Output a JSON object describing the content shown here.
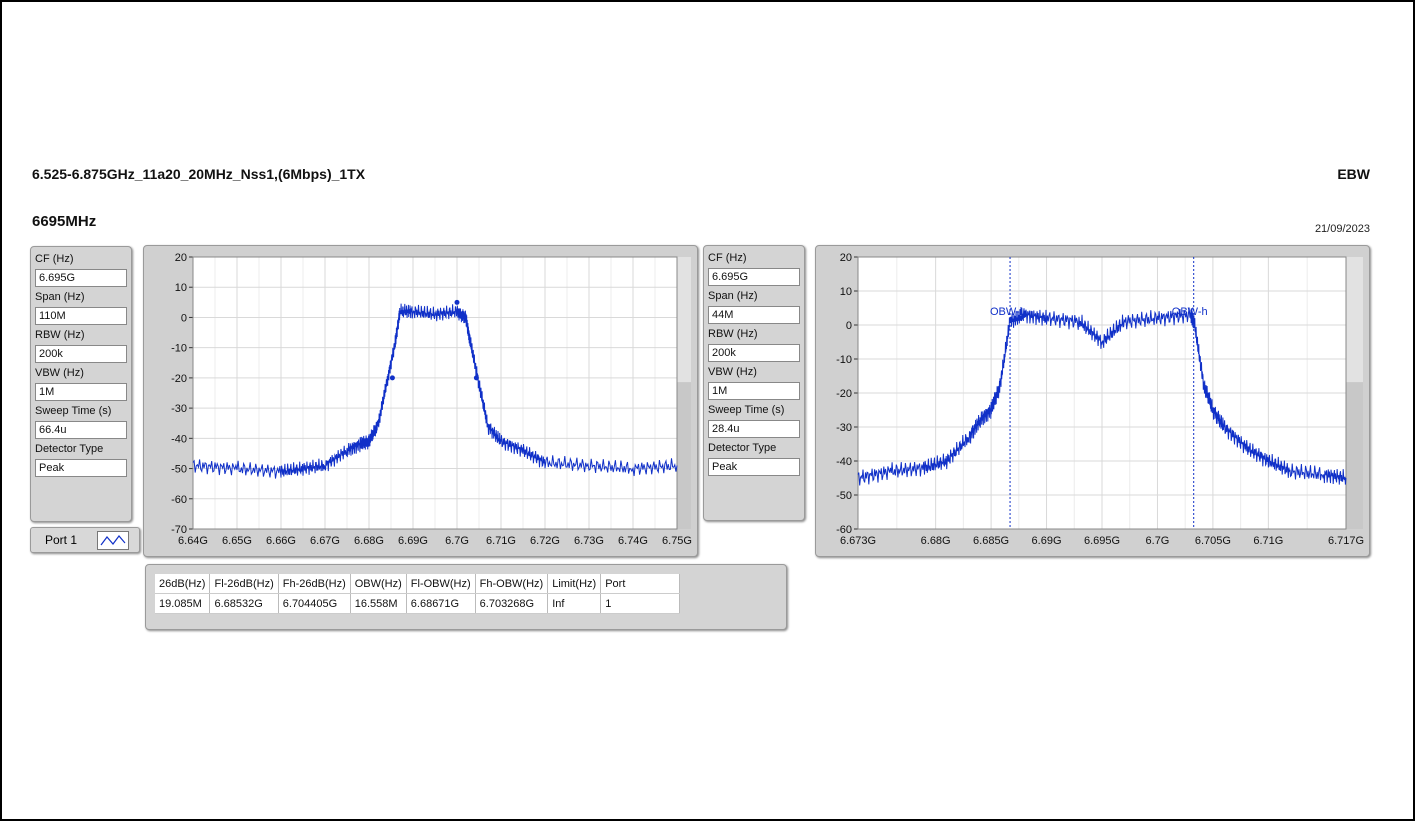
{
  "header": {
    "title": "6.525-6.875GHz_11a20_20MHz_Nss1,(6Mbps)_1TX",
    "mode": "EBW",
    "frequency": "6695MHz",
    "date": "21/09/2023"
  },
  "settings_left": [
    {
      "label": "CF (Hz)",
      "value": "6.695G"
    },
    {
      "label": "Span (Hz)",
      "value": "110M"
    },
    {
      "label": "RBW (Hz)",
      "value": "200k"
    },
    {
      "label": "VBW (Hz)",
      "value": "1M"
    },
    {
      "label": "Sweep Time (s)",
      "value": "66.4u"
    },
    {
      "label": "Detector Type",
      "value": "Peak"
    }
  ],
  "settings_right": [
    {
      "label": "CF (Hz)",
      "value": "6.695G"
    },
    {
      "label": "Span (Hz)",
      "value": "44M"
    },
    {
      "label": "RBW (Hz)",
      "value": "200k"
    },
    {
      "label": "VBW (Hz)",
      "value": "1M"
    },
    {
      "label": "Sweep Time (s)",
      "value": "28.4u"
    },
    {
      "label": "Detector Type",
      "value": "Peak"
    }
  ],
  "port": {
    "label": "Port 1"
  },
  "results_table": {
    "headers": [
      "26dB(Hz)",
      "Fl-26dB(Hz)",
      "Fh-26dB(Hz)",
      "OBW(Hz)",
      "Fl-OBW(Hz)",
      "Fh-OBW(Hz)",
      "Limit(Hz)",
      "Port"
    ],
    "row": [
      "19.085M",
      "6.68532G",
      "6.704405G",
      "16.558M",
      "6.68671G",
      "6.703268G",
      "Inf",
      "1"
    ]
  },
  "chart_data": [
    {
      "type": "line",
      "xlim": [
        6.64,
        6.75
      ],
      "ylim": [
        -70,
        20
      ],
      "x_ticks": [
        "6.64G",
        "6.65G",
        "6.66G",
        "6.67G",
        "6.68G",
        "6.69G",
        "6.7G",
        "6.71G",
        "6.72G",
        "6.73G",
        "6.74G",
        "6.75G"
      ],
      "y_ticks": [
        "20",
        "10",
        "0",
        "-10",
        "-20",
        "-30",
        "-40",
        "-50",
        "-60",
        "-70"
      ],
      "grid": true,
      "series": [
        {
          "color": "#1030c8",
          "x": [
            6.64,
            6.65,
            6.66,
            6.665,
            6.67,
            6.675,
            6.678,
            6.68,
            6.682,
            6.684,
            6.686,
            6.687,
            6.69,
            6.695,
            6.7,
            6.702,
            6.703,
            6.705,
            6.707,
            6.71,
            6.715,
            6.72,
            6.73,
            6.74,
            6.75
          ],
          "y": [
            -49,
            -50,
            -51,
            -50,
            -49,
            -44,
            -42,
            -41,
            -36,
            -22,
            -8,
            2,
            2,
            1,
            2,
            0,
            -8,
            -22,
            -36,
            -41,
            -44,
            -48,
            -49,
            -50,
            -49
          ]
        }
      ],
      "markers": [
        {
          "x": 6.68532,
          "y": -20
        },
        {
          "x": 6.7,
          "y": 5
        },
        {
          "x": 6.704405,
          "y": -20
        }
      ]
    },
    {
      "type": "line",
      "xlim": [
        6.673,
        6.717
      ],
      "ylim": [
        -60,
        20
      ],
      "x_ticks": [
        "6.673G",
        "6.68G",
        "6.685G",
        "6.69G",
        "6.695G",
        "6.7G",
        "6.705G",
        "6.71G",
        "6.717G"
      ],
      "x_tick_values": [
        6.673,
        6.68,
        6.685,
        6.69,
        6.695,
        6.7,
        6.705,
        6.71,
        6.717
      ],
      "y_ticks": [
        "20",
        "10",
        "0",
        "-10",
        "-20",
        "-30",
        "-40",
        "-50",
        "-60"
      ],
      "grid": true,
      "series": [
        {
          "color": "#1030c8",
          "x": [
            6.673,
            6.676,
            6.679,
            6.681,
            6.683,
            6.684,
            6.685,
            6.6858,
            6.6867,
            6.688,
            6.69,
            6.693,
            6.695,
            6.697,
            6.7,
            6.703,
            6.7033,
            6.7042,
            6.705,
            6.706,
            6.708,
            6.71,
            6.712,
            6.715,
            6.717
          ],
          "y": [
            -45,
            -43,
            -42,
            -40,
            -33,
            -28,
            -25,
            -18,
            1,
            3,
            2,
            1,
            -5,
            1,
            2,
            3,
            1,
            -18,
            -25,
            -30,
            -36,
            -40,
            -43,
            -44,
            -45
          ]
        }
      ],
      "annotations": [
        {
          "x": 6.68671,
          "label": "OBW-l"
        },
        {
          "x": 6.703268,
          "label": "OBW-h"
        }
      ]
    }
  ]
}
